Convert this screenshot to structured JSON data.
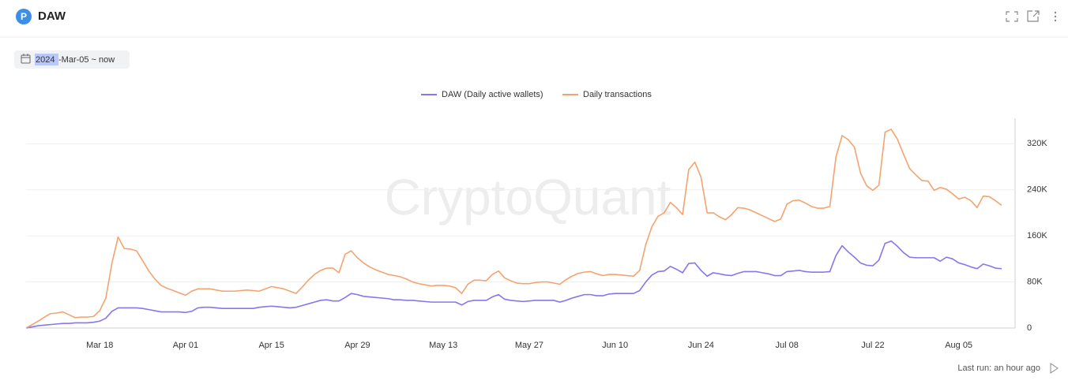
{
  "header": {
    "icon": "P",
    "title": "DAW"
  },
  "date_range": {
    "year": "2024",
    "rest": "-Mar-05 ~ now"
  },
  "watermark": "CryptoQuant",
  "footer": "Last run: an hour ago",
  "chart_data": {
    "type": "line",
    "categories": [
      null,
      null,
      null,
      null,
      null,
      null,
      null,
      null,
      null,
      null,
      null,
      null,
      "Mar 18",
      null,
      null,
      null,
      null,
      null,
      null,
      null,
      null,
      null,
      null,
      null,
      null,
      null,
      "Apr 01",
      null,
      null,
      null,
      null,
      null,
      null,
      null,
      null,
      null,
      null,
      null,
      null,
      null,
      "Apr 15",
      null,
      null,
      null,
      null,
      null,
      null,
      null,
      null,
      null,
      null,
      null,
      null,
      null,
      "Apr 29",
      null,
      null,
      null,
      null,
      null,
      null,
      null,
      null,
      null,
      null,
      null,
      null,
      null,
      "May 13",
      null,
      null,
      null,
      null,
      null,
      null,
      null,
      null,
      null,
      null,
      null,
      null,
      null,
      "May 27",
      null,
      null,
      null,
      null,
      null,
      null,
      null,
      null,
      null,
      null,
      null,
      null,
      null,
      "Jun 10",
      null,
      null,
      null,
      null,
      null,
      null,
      null,
      null,
      null,
      null,
      null,
      null,
      null,
      "Jun 24",
      null,
      null,
      null,
      null,
      null,
      null,
      null,
      null,
      null,
      null,
      null,
      null,
      null,
      "Jul 08",
      null,
      null,
      null,
      null,
      null,
      null,
      null,
      null,
      null,
      null,
      null,
      null,
      null,
      "Jul 22",
      null,
      null,
      null,
      null,
      null,
      null,
      null,
      null,
      null,
      null,
      null,
      null,
      null,
      "Aug 05",
      null,
      null,
      null,
      null,
      null,
      null,
      null
    ],
    "series": [
      {
        "name": "DAW (Daily active wallets)",
        "color": "#8677ee",
        "values": [
          0,
          2000,
          4000,
          5000,
          6000,
          7000,
          8000,
          8000,
          9000,
          9000,
          9000,
          10000,
          12000,
          17000,
          29000,
          35000,
          35000,
          35000,
          35000,
          34000,
          32000,
          30000,
          28000,
          28000,
          28000,
          28000,
          27000,
          29000,
          35000,
          36000,
          36000,
          35000,
          34000,
          34000,
          34000,
          34000,
          34000,
          34000,
          36000,
          37000,
          38000,
          37000,
          36000,
          35000,
          36000,
          39000,
          42000,
          45000,
          48000,
          49000,
          47000,
          47000,
          53000,
          60000,
          58000,
          55000,
          54000,
          53000,
          52000,
          51000,
          49000,
          49000,
          48000,
          48000,
          47000,
          46000,
          45000,
          45000,
          45000,
          45000,
          45000,
          40000,
          46000,
          48000,
          48000,
          48000,
          54000,
          58000,
          50000,
          48000,
          47000,
          46000,
          47000,
          48000,
          48000,
          48000,
          48000,
          45000,
          48000,
          52000,
          55000,
          58000,
          58000,
          56000,
          56000,
          59000,
          60000,
          60000,
          60000,
          60000,
          65000,
          80000,
          92000,
          98000,
          99000,
          107000,
          102000,
          96000,
          112000,
          113000,
          100000,
          90000,
          96000,
          94000,
          92000,
          91000,
          95000,
          98000,
          98000,
          98000,
          96000,
          94000,
          91000,
          91000,
          98000,
          99000,
          100000,
          98000,
          97000,
          97000,
          97000,
          98000,
          126000,
          143000,
          132000,
          123000,
          113000,
          109000,
          108000,
          118000,
          147000,
          151000,
          142000,
          131000,
          123000,
          122000,
          122000,
          122000,
          122000,
          116000,
          123000,
          120000,
          113000,
          110000,
          106000,
          103000,
          111000,
          108000,
          104000,
          103000
        ]
      },
      {
        "name": "Daily transactions",
        "color": "#f4a36f",
        "values": [
          0,
          6000,
          12000,
          19000,
          25000,
          26000,
          28000,
          23000,
          18000,
          19000,
          19000,
          20000,
          30000,
          52000,
          113000,
          158000,
          138000,
          137000,
          134000,
          117000,
          99000,
          85000,
          74000,
          69000,
          65000,
          61000,
          57000,
          64000,
          68000,
          68000,
          68000,
          66000,
          64000,
          64000,
          64000,
          65000,
          66000,
          65000,
          64000,
          68000,
          72000,
          70000,
          68000,
          64000,
          60000,
          71000,
          83000,
          93000,
          100000,
          104000,
          104000,
          96000,
          128000,
          134000,
          122000,
          113000,
          106000,
          101000,
          97000,
          93000,
          91000,
          89000,
          85000,
          80000,
          77000,
          75000,
          73000,
          74000,
          74000,
          73000,
          70000,
          60000,
          76000,
          83000,
          83000,
          82000,
          93000,
          99000,
          87000,
          82000,
          78000,
          77000,
          77000,
          79000,
          80000,
          80000,
          78000,
          76000,
          84000,
          90000,
          95000,
          97000,
          98000,
          94000,
          91000,
          93000,
          93000,
          92000,
          91000,
          90000,
          100000,
          145000,
          176000,
          194000,
          200000,
          218000,
          209000,
          197000,
          275000,
          288000,
          262000,
          200000,
          200000,
          193000,
          188000,
          197000,
          209000,
          208000,
          205000,
          200000,
          195000,
          190000,
          185000,
          189000,
          215000,
          221000,
          222000,
          217000,
          211000,
          208000,
          208000,
          211000,
          297000,
          334000,
          327000,
          314000,
          269000,
          247000,
          239000,
          248000,
          340000,
          345000,
          328000,
          302000,
          277000,
          266000,
          256000,
          255000,
          239000,
          244000,
          241000,
          233000,
          224000,
          227000,
          221000,
          209000,
          229000,
          228000,
          221000,
          213000
        ]
      }
    ],
    "ylim": [
      0,
      360000
    ],
    "yticks": [
      0,
      {
        "value": 80000,
        "label": "80K"
      },
      {
        "value": 160000,
        "label": "160K"
      },
      {
        "value": 240000,
        "label": "240K"
      },
      {
        "value": 320000,
        "label": "320K"
      }
    ],
    "grid": true,
    "legend": "top"
  }
}
